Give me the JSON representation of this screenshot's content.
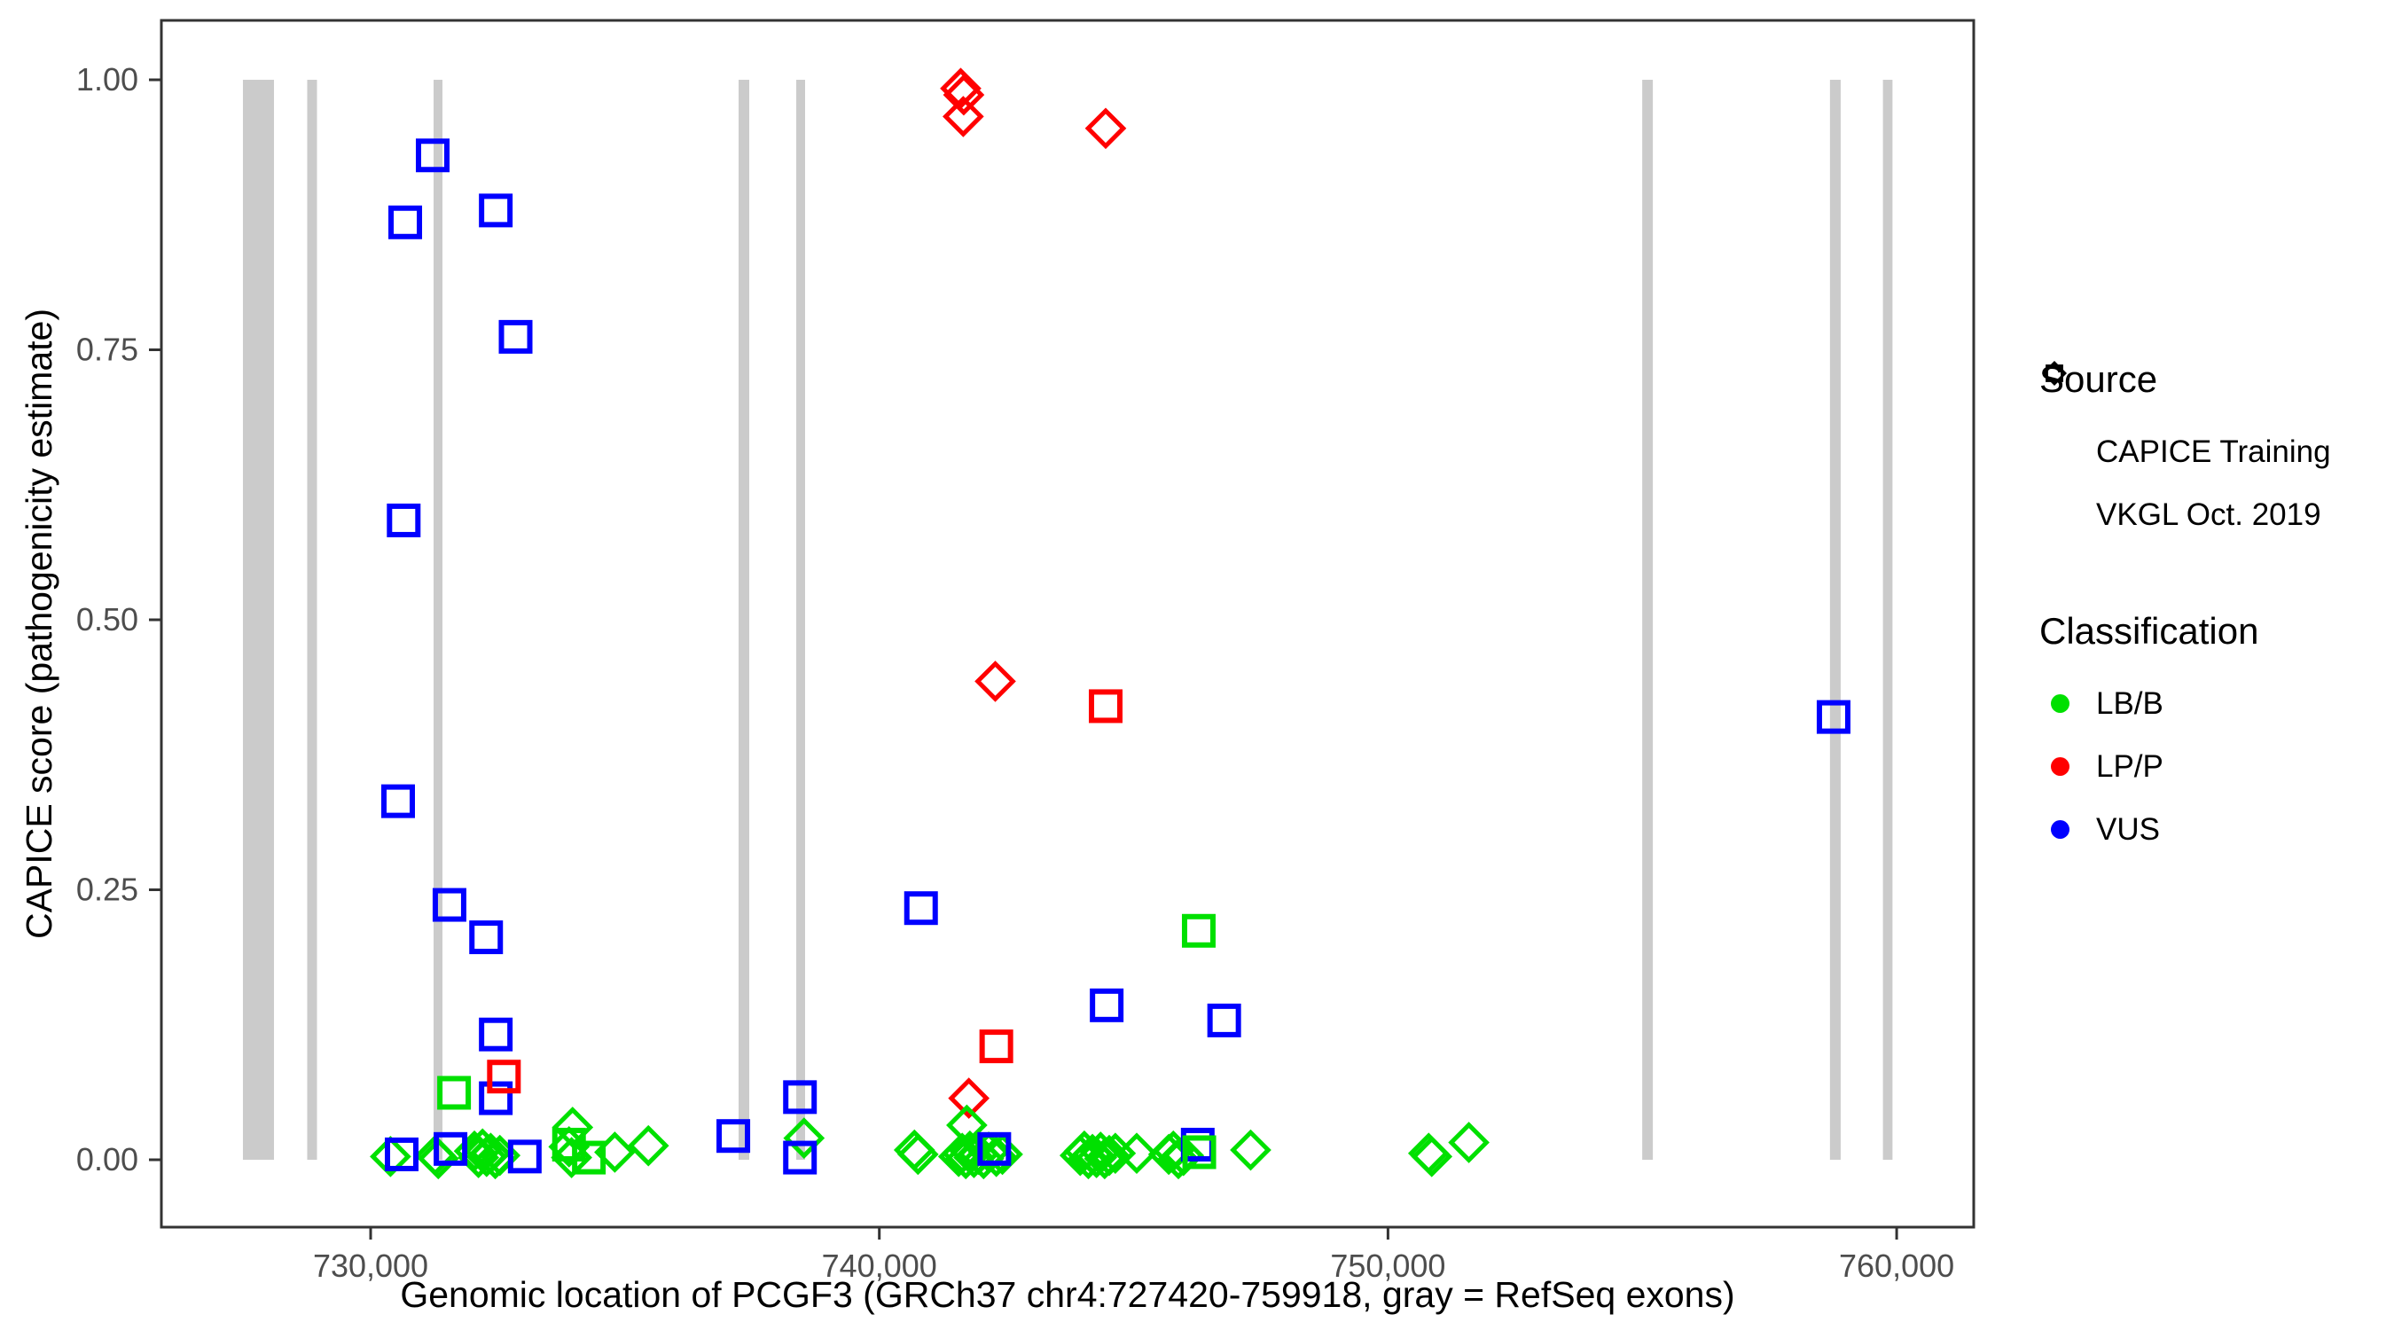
{
  "chart_data": {
    "type": "scatter",
    "title": "",
    "xlabel": "Genomic location of PCGF3 (GRCh37 chr4:727420-759918, gray = RefSeq exons)",
    "ylabel": "CAPICE score (pathogenicity estimate)",
    "xlim": [
      725886,
      761515
    ],
    "ylim": [
      -0.0624,
      1.055
    ],
    "grid": false,
    "x_ticks": [
      {
        "value": 730000,
        "label": "730,000"
      },
      {
        "value": 740000,
        "label": "740,000"
      },
      {
        "value": 750000,
        "label": "750,000"
      },
      {
        "value": 760000,
        "label": "760,000"
      }
    ],
    "y_ticks": [
      {
        "value": 0.0,
        "label": "0.00"
      },
      {
        "value": 0.25,
        "label": "0.25"
      },
      {
        "value": 0.5,
        "label": "0.50"
      },
      {
        "value": 0.75,
        "label": "0.75"
      },
      {
        "value": 1.0,
        "label": "1.00"
      }
    ],
    "exon_color": "#CBCBCB",
    "exons": [
      {
        "start": 727489,
        "end": 728100
      },
      {
        "start": 728753,
        "end": 728945
      },
      {
        "start": 731238,
        "end": 731412
      },
      {
        "start": 737234,
        "end": 737443
      },
      {
        "start": 738367,
        "end": 738541
      },
      {
        "start": 754998,
        "end": 755207
      },
      {
        "start": 758689,
        "end": 758899
      },
      {
        "start": 759730,
        "end": 759918
      }
    ],
    "class_colors": {
      "LB/B": "#00E000",
      "LP/P": "#FF0000",
      "VUS": "#0000FF"
    },
    "series": [
      {
        "name": "CAPICE Training",
        "marker": "diamond",
        "points": [
          [
            741600,
            0.992,
            "LP/P"
          ],
          [
            741660,
            0.986,
            "LP/P"
          ],
          [
            741650,
            0.966,
            "LP/P"
          ],
          [
            744450,
            0.955,
            "LP/P"
          ],
          [
            742280,
            0.443,
            "LP/P"
          ],
          [
            741760,
            0.057,
            "LP/P"
          ],
          [
            730390,
            0.003,
            "LB/B"
          ],
          [
            731270,
            0.004,
            "LB/B"
          ],
          [
            731330,
            0.001,
            "LB/B"
          ],
          [
            732040,
            0.008,
            "LB/B"
          ],
          [
            732120,
            0.002,
            "LB/B"
          ],
          [
            732200,
            0.01,
            "LB/B"
          ],
          [
            732280,
            0.003,
            "LB/B"
          ],
          [
            732360,
            0.006,
            "LB/B"
          ],
          [
            732450,
            0.001,
            "LB/B"
          ],
          [
            732540,
            0.004,
            "LB/B"
          ],
          [
            733970,
            0.03,
            "LB/B"
          ],
          [
            733900,
            0.012,
            "LB/B"
          ],
          [
            733950,
            0.002,
            "LB/B"
          ],
          [
            734800,
            0.007,
            "LB/B"
          ],
          [
            735460,
            0.013,
            "LB/B"
          ],
          [
            738520,
            0.02,
            "LB/B"
          ],
          [
            740690,
            0.009,
            "LB/B"
          ],
          [
            740760,
            0.005,
            "LB/B"
          ],
          [
            741720,
            0.032,
            "LB/B"
          ],
          [
            741560,
            0.003,
            "LB/B"
          ],
          [
            741630,
            0.006,
            "LB/B"
          ],
          [
            741700,
            0.001,
            "LB/B"
          ],
          [
            741780,
            0.008,
            "LB/B"
          ],
          [
            741860,
            0.002,
            "LB/B"
          ],
          [
            741950,
            0.005,
            "LB/B"
          ],
          [
            742050,
            0.001,
            "LB/B"
          ],
          [
            742150,
            0.007,
            "LB/B"
          ],
          [
            742300,
            0.003,
            "LB/B"
          ],
          [
            742420,
            0.005,
            "LB/B"
          ],
          [
            743950,
            0.004,
            "LB/B"
          ],
          [
            744030,
            0.008,
            "LB/B"
          ],
          [
            744110,
            0.001,
            "LB/B"
          ],
          [
            744190,
            0.005,
            "LB/B"
          ],
          [
            744270,
            0.002,
            "LB/B"
          ],
          [
            744350,
            0.007,
            "LB/B"
          ],
          [
            744430,
            0.001,
            "LB/B"
          ],
          [
            744520,
            0.004,
            "LB/B"
          ],
          [
            744640,
            0.006,
            "LB/B"
          ],
          [
            745060,
            0.006,
            "LB/B"
          ],
          [
            745690,
            0.005,
            "LB/B"
          ],
          [
            745780,
            0.008,
            "LB/B"
          ],
          [
            745880,
            0.001,
            "LB/B"
          ],
          [
            745980,
            0.004,
            "LB/B"
          ],
          [
            747300,
            0.009,
            "LB/B"
          ],
          [
            750800,
            0.006,
            "LB/B"
          ],
          [
            750860,
            0.003,
            "LB/B"
          ],
          [
            751590,
            0.016,
            "LB/B"
          ]
        ]
      },
      {
        "name": "VKGL Oct. 2019",
        "marker": "square",
        "points": [
          [
            731220,
            0.93,
            "VUS"
          ],
          [
            730680,
            0.868,
            "VUS"
          ],
          [
            732460,
            0.879,
            "VUS"
          ],
          [
            732850,
            0.762,
            "VUS"
          ],
          [
            730650,
            0.592,
            "VUS"
          ],
          [
            730540,
            0.332,
            "VUS"
          ],
          [
            731550,
            0.236,
            "VUS"
          ],
          [
            732270,
            0.206,
            "VUS"
          ],
          [
            732460,
            0.116,
            "VUS"
          ],
          [
            732460,
            0.057,
            "VUS"
          ],
          [
            740820,
            0.233,
            "VUS"
          ],
          [
            744470,
            0.143,
            "VUS"
          ],
          [
            746780,
            0.129,
            "VUS"
          ],
          [
            738440,
            0.058,
            "VUS"
          ],
          [
            737130,
            0.022,
            "VUS"
          ],
          [
            730610,
            0.005,
            "VUS"
          ],
          [
            731570,
            0.01,
            "VUS"
          ],
          [
            733030,
            0.003,
            "VUS"
          ],
          [
            738440,
            0.002,
            "VUS"
          ],
          [
            742260,
            0.01,
            "VUS"
          ],
          [
            746260,
            0.014,
            "VUS"
          ],
          [
            758760,
            0.41,
            "VUS"
          ],
          [
            744450,
            0.42,
            "LP/P"
          ],
          [
            742300,
            0.105,
            "LP/P"
          ],
          [
            732620,
            0.077,
            "LP/P"
          ],
          [
            731640,
            0.062,
            "LB/B"
          ],
          [
            746280,
            0.212,
            "LB/B"
          ],
          [
            734290,
            0.002,
            "LB/B"
          ],
          [
            733900,
            0.014,
            "LB/B"
          ],
          [
            746290,
            0.007,
            "LB/B"
          ]
        ]
      }
    ],
    "axis_color": "#333333",
    "tick_label_color": "#4D4D4D"
  },
  "legend": {
    "source_title": "Source",
    "source_items": [
      {
        "label": "CAPICE Training",
        "marker": "diamond"
      },
      {
        "label": "VKGL Oct. 2019",
        "marker": "square"
      }
    ],
    "classification_title": "Classification",
    "classification_items": [
      {
        "label": "LB/B",
        "color": "#00E000"
      },
      {
        "label": "LP/P",
        "color": "#FF0000"
      },
      {
        "label": "VUS",
        "color": "#0000FF"
      }
    ]
  }
}
